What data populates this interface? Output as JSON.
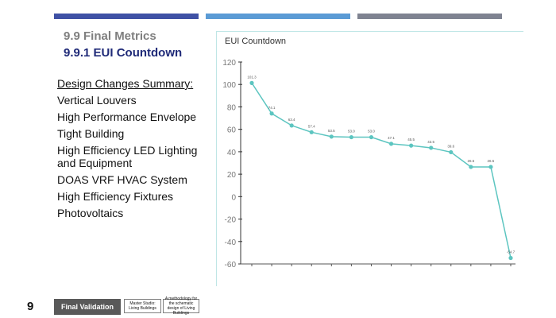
{
  "header": {
    "section_title": "9.9 Final Metrics",
    "subsection_title": "9.9.1 EUI Countdown",
    "accent_colors": [
      "#3f51a5",
      "#5b9bd5",
      "#7f8391"
    ]
  },
  "summary": {
    "heading": "Design Changes Summary:",
    "items": [
      "Vertical Louvers",
      "High Performance Envelope",
      "Tight Building",
      "High Efficiency LED Lighting and Equipment",
      "DOAS VRF HVAC System",
      "High Efficiency Fixtures",
      "Photovoltaics"
    ]
  },
  "chart_data": {
    "type": "line",
    "title": "EUI Countdown",
    "xlabel": "",
    "ylabel": "",
    "ylim": [
      -60,
      120
    ],
    "yticks": [
      120,
      100,
      80,
      60,
      40,
      20,
      0,
      -20,
      -40,
      -60
    ],
    "line_color": "#5cc5c0",
    "grid": false,
    "series": [
      {
        "values": [
          101.3,
          74.1,
          63.4,
          57.4,
          53.5,
          53.0,
          53.0,
          47.1,
          45.5,
          43.5,
          39.6,
          26.5,
          26.5,
          -54.7
        ]
      }
    ],
    "data_labels": [
      "101.3",
      "74.1",
      "63.4",
      "57.4",
      "53.5",
      "53.0",
      "53.0",
      "47.1",
      "45.5",
      "43.5",
      "39.6",
      "26.5",
      "26.5",
      "-54.7"
    ]
  },
  "footer": {
    "page_number": "9",
    "chapter_label": "Final Validation",
    "box1": "Master Studio: Living Buildings",
    "box2": "A methodology for the schematic design of Living Buildings"
  }
}
